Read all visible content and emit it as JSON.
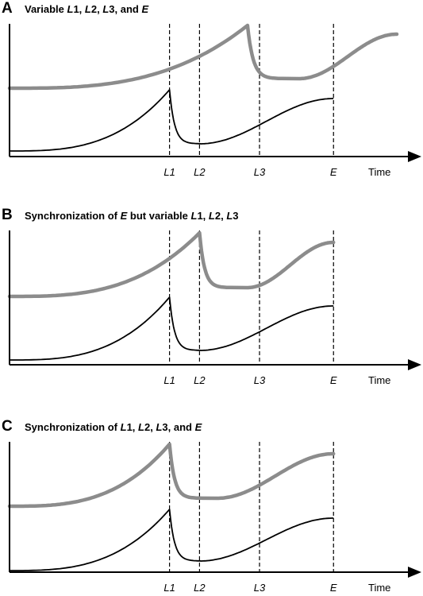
{
  "panels": [
    {
      "letter": "A",
      "title_parts": [
        {
          "text": "Variable ",
          "italic": false
        },
        {
          "text": "L",
          "italic": true
        },
        {
          "text": "1, ",
          "italic": false
        },
        {
          "text": "L",
          "italic": true
        },
        {
          "text": "2, ",
          "italic": false
        },
        {
          "text": "L",
          "italic": true
        },
        {
          "text": "3, and ",
          "italic": false
        },
        {
          "text": "E",
          "italic": true
        }
      ],
      "markers": [
        {
          "label": "L1",
          "t": 0.4
        },
        {
          "label": "L2",
          "t": 0.475
        },
        {
          "label": "L3",
          "t": 0.625
        },
        {
          "label": "E",
          "t": 0.81
        }
      ],
      "time_label": "Time"
    },
    {
      "letter": "B",
      "title_parts": [
        {
          "text": "Synchronization of ",
          "italic": false
        },
        {
          "text": "E",
          "italic": true
        },
        {
          "text": " but variable ",
          "italic": false
        },
        {
          "text": "L",
          "italic": true
        },
        {
          "text": "1, ",
          "italic": false
        },
        {
          "text": "L",
          "italic": true
        },
        {
          "text": "2, ",
          "italic": false
        },
        {
          "text": "L",
          "italic": true
        },
        {
          "text": "3",
          "italic": false
        }
      ],
      "markers": [
        {
          "label": "L1",
          "t": 0.4
        },
        {
          "label": "L2",
          "t": 0.475
        },
        {
          "label": "L3",
          "t": 0.625
        },
        {
          "label": "E",
          "t": 0.81
        }
      ],
      "time_label": "Time"
    },
    {
      "letter": "C",
      "title_parts": [
        {
          "text": "Synchronization of ",
          "italic": false
        },
        {
          "text": "L",
          "italic": true
        },
        {
          "text": "1, ",
          "italic": false
        },
        {
          "text": "L",
          "italic": true
        },
        {
          "text": "2, ",
          "italic": false
        },
        {
          "text": "L",
          "italic": true
        },
        {
          "text": "3, and ",
          "italic": false
        },
        {
          "text": "E",
          "italic": true
        }
      ],
      "markers": [
        {
          "label": "L1",
          "t": 0.4
        },
        {
          "label": "L2",
          "t": 0.475
        },
        {
          "label": "L3",
          "t": 0.625
        },
        {
          "label": "E",
          "t": 0.81
        }
      ],
      "time_label": "Time"
    }
  ],
  "colors": {
    "black_curve": "#000000",
    "gray_curve": "#8c8c8c",
    "axis": "#000000",
    "dashes": "#000000"
  }
}
